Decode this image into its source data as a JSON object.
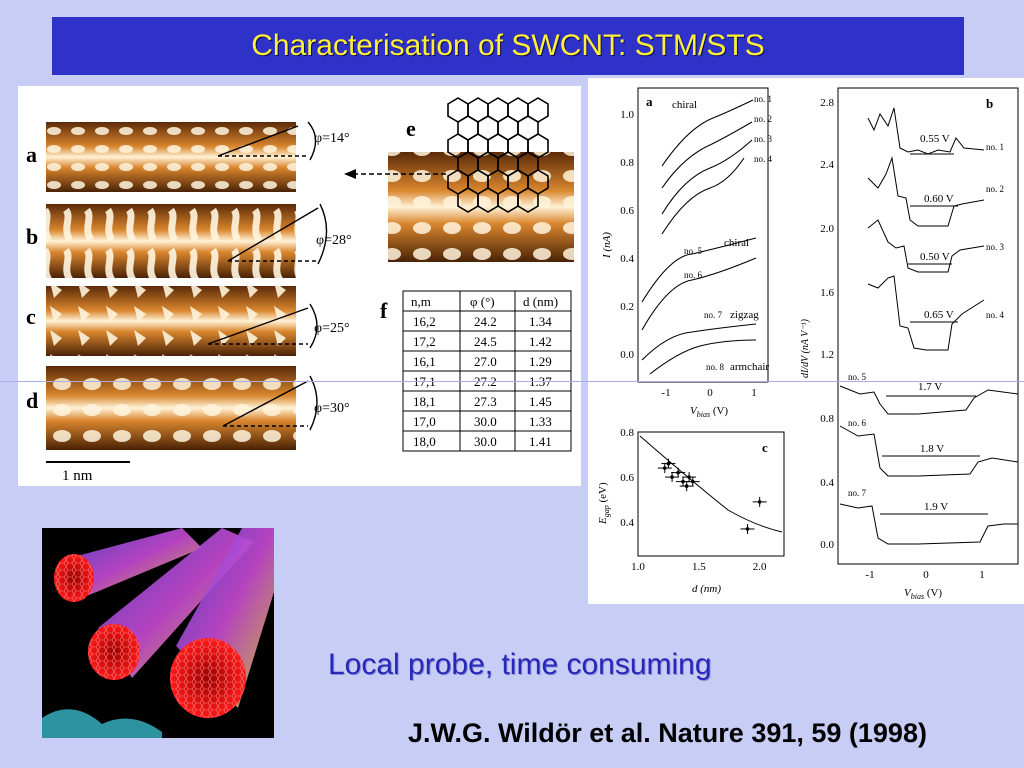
{
  "title": "Characterisation of SWCNT: STM/STS",
  "stm": {
    "labels": [
      "a",
      "b",
      "c",
      "d",
      "e",
      "f"
    ],
    "angles": [
      "φ=14°",
      "φ=28°",
      "φ=25°",
      "φ=30°"
    ],
    "scale": "1 nm",
    "table": {
      "headers": [
        "n,m",
        "φ (°)",
        "d (nm)"
      ],
      "rows": [
        [
          "16,2",
          "24.2",
          "1.34"
        ],
        [
          "17,2",
          "24.5",
          "1.42"
        ],
        [
          "16,1",
          "27.0",
          "1.29"
        ],
        [
          "17,1",
          "27.2",
          "1.37"
        ],
        [
          "18,1",
          "27.3",
          "1.45"
        ],
        [
          "17,0",
          "30.0",
          "1.33"
        ],
        [
          "18,0",
          "30.0",
          "1.41"
        ]
      ]
    }
  },
  "sts": {
    "panel_a": {
      "label": "a",
      "ylabel": "I (nA)",
      "xlabel": "V",
      "xlabel_sub": "bias",
      "xlabel_unit": " (V)",
      "yticks": [
        "1.0",
        "0.8",
        "0.6",
        "0.4",
        "0.2",
        "0.0"
      ],
      "xticks": [
        "-1",
        "0",
        "1"
      ],
      "annotations": [
        "chiral",
        "chiral",
        "zigzag",
        "armchair"
      ],
      "curves": [
        "no. 1",
        "no. 2",
        "no. 3",
        "no. 4",
        "no. 5",
        "no. 6",
        "no. 7",
        "no. 8"
      ]
    },
    "panel_b": {
      "label": "b",
      "ylabel": "dI/dV (nA V⁻¹)",
      "xlabel": "V",
      "xlabel_sub": "bias",
      "xlabel_unit": " (V)",
      "yticks": [
        "2.8",
        "2.4",
        "2.0",
        "1.6",
        "1.2",
        "0.8",
        "0.4",
        "0.0"
      ],
      "xticks": [
        "-1",
        "0",
        "1"
      ],
      "curves": [
        "no. 1",
        "no. 2",
        "no. 3",
        "no. 4",
        "no. 5",
        "no. 6",
        "no. 7"
      ],
      "gaps": [
        "0.55 V",
        "0.60 V",
        "0.50 V",
        "0.65 V",
        "1.7 V",
        "1.8 V",
        "1.9 V"
      ]
    },
    "panel_c": {
      "label": "c",
      "ylabel": "E",
      "ylabel_sub": "gap",
      "ylabel_unit": " (eV)",
      "xlabel": "d  (nm)",
      "yticks": [
        "0.8",
        "0.6",
        "0.4"
      ],
      "xticks": [
        "1.0",
        "1.5",
        "2.0"
      ]
    }
  },
  "chart_data": [
    {
      "type": "scatter",
      "title": "",
      "xlabel": "d (nm)",
      "ylabel": "E_gap (eV)",
      "xlim": [
        1.0,
        2.2
      ],
      "ylim": [
        0.25,
        0.8
      ],
      "series": [
        {
          "x": [
            1.22,
            1.25,
            1.28,
            1.33,
            1.37,
            1.4,
            1.42,
            1.45,
            1.9,
            2.0
          ],
          "y": [
            0.64,
            0.66,
            0.6,
            0.62,
            0.58,
            0.56,
            0.6,
            0.58,
            0.37,
            0.49
          ]
        }
      ]
    }
  ],
  "footer": {
    "slogan": "Local probe, time consuming",
    "reference": "J.W.G. Wildör et al. Nature 391, 59 (1998)"
  }
}
